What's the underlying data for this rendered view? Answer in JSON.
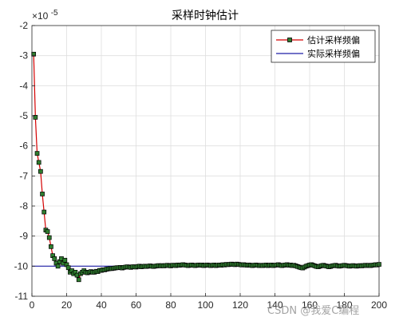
{
  "chart_data": {
    "type": "line",
    "title": "采样时钟估计",
    "xlabel": "",
    "ylabel": "",
    "xlim": [
      0,
      200
    ],
    "ylim": [
      -11,
      -2
    ],
    "x_ticks": [
      0,
      20,
      40,
      60,
      80,
      100,
      120,
      140,
      160,
      180,
      200
    ],
    "y_ticks": [
      -11,
      -10,
      -9,
      -8,
      -7,
      -6,
      -5,
      -4,
      -3,
      -2
    ],
    "y_exponent_label": "×10",
    "y_exponent_power": "-5",
    "grid": true,
    "legend_position": "top-right",
    "series": [
      {
        "name": "估计采样频偏",
        "color": "#d40000",
        "marker": "square",
        "marker_fill": "#2f7d2f",
        "x": [
          1,
          2,
          3,
          4,
          5,
          6,
          7,
          8,
          9,
          10,
          11,
          12,
          13,
          14,
          15,
          16,
          17,
          18,
          19,
          20,
          21,
          22,
          23,
          24,
          25,
          26,
          27,
          28,
          29,
          30,
          31,
          32,
          33,
          34,
          35,
          36,
          37,
          38,
          39,
          40,
          41,
          42,
          43,
          44,
          45,
          46,
          47,
          48,
          49,
          50,
          51,
          52,
          53,
          54,
          55,
          56,
          57,
          58,
          59,
          60,
          61,
          62,
          63,
          64,
          65,
          66,
          67,
          68,
          69,
          70,
          71,
          72,
          73,
          74,
          75,
          76,
          77,
          78,
          79,
          80,
          81,
          82,
          83,
          84,
          85,
          86,
          87,
          88,
          89,
          90,
          91,
          92,
          93,
          94,
          95,
          96,
          97,
          98,
          99,
          100,
          101,
          102,
          103,
          104,
          105,
          106,
          107,
          108,
          109,
          110,
          111,
          112,
          113,
          114,
          115,
          116,
          117,
          118,
          119,
          120,
          121,
          122,
          123,
          124,
          125,
          126,
          127,
          128,
          129,
          130,
          131,
          132,
          133,
          134,
          135,
          136,
          137,
          138,
          139,
          140,
          141,
          142,
          143,
          144,
          145,
          146,
          147,
          148,
          149,
          150,
          151,
          152,
          153,
          154,
          155,
          156,
          157,
          158,
          159,
          160,
          161,
          162,
          163,
          164,
          165,
          166,
          167,
          168,
          169,
          170,
          171,
          172,
          173,
          174,
          175,
          176,
          177,
          178,
          179,
          180,
          181,
          182,
          183,
          184,
          185,
          186,
          187,
          188,
          189,
          190,
          191,
          192,
          193,
          194,
          195,
          196,
          197,
          198,
          199,
          200
        ],
        "y": [
          -2.95,
          -5.05,
          -6.25,
          -6.55,
          -6.85,
          -7.6,
          -8.2,
          -8.8,
          -8.85,
          -9.05,
          -9.35,
          -9.65,
          -9.75,
          -9.9,
          -10.0,
          -9.85,
          -9.75,
          -9.9,
          -9.8,
          -9.95,
          -10.05,
          -10.2,
          -10.15,
          -10.25,
          -10.2,
          -10.3,
          -10.45,
          -10.25,
          -10.2,
          -10.15,
          -10.2,
          -10.22,
          -10.2,
          -10.18,
          -10.2,
          -10.2,
          -10.17,
          -10.18,
          -10.14,
          -10.14,
          -10.12,
          -10.12,
          -10.1,
          -10.09,
          -10.08,
          -10.08,
          -10.07,
          -10.06,
          -10.05,
          -10.05,
          -10.04,
          -10.06,
          -10.04,
          -10.03,
          -10.02,
          -10.03,
          -10.04,
          -10.02,
          -10.02,
          -10.03,
          -10.01,
          -10.0,
          -10.02,
          -10.01,
          -10.0,
          -10.01,
          -10.0,
          -9.99,
          -10.0,
          -10.01,
          -10.0,
          -9.99,
          -9.98,
          -9.99,
          -9.98,
          -9.99,
          -9.98,
          -9.97,
          -9.98,
          -9.99,
          -9.97,
          -9.97,
          -9.98,
          -9.96,
          -9.97,
          -9.96,
          -9.95,
          -9.96,
          -9.97,
          -9.98,
          -9.97,
          -9.96,
          -9.97,
          -9.98,
          -9.97,
          -9.96,
          -9.97,
          -9.96,
          -9.98,
          -9.97,
          -9.96,
          -9.97,
          -9.98,
          -9.97,
          -9.96,
          -9.98,
          -9.97,
          -9.96,
          -9.97,
          -9.95,
          -9.96,
          -9.94,
          -9.95,
          -9.94,
          -9.93,
          -9.94,
          -9.95,
          -9.93,
          -9.94,
          -9.95,
          -9.96,
          -9.95,
          -9.96,
          -9.97,
          -9.96,
          -9.97,
          -9.98,
          -9.97,
          -9.96,
          -9.97,
          -9.98,
          -9.97,
          -9.98,
          -9.97,
          -9.96,
          -9.98,
          -9.97,
          -9.96,
          -9.98,
          -9.97,
          -9.96,
          -9.95,
          -9.97,
          -9.98,
          -9.97,
          -9.96,
          -9.95,
          -9.97,
          -9.96,
          -9.98,
          -9.97,
          -9.99,
          -10.01,
          -10.03,
          -10.05,
          -10.06,
          -10.03,
          -10.0,
          -9.98,
          -9.96,
          -9.95,
          -9.97,
          -9.99,
          -10.01,
          -10.02,
          -10.0,
          -9.98,
          -9.97,
          -9.99,
          -10.0,
          -10.02,
          -10.01,
          -9.99,
          -9.98,
          -9.97,
          -9.99,
          -10.0,
          -9.99,
          -9.98,
          -9.97,
          -9.98,
          -9.99,
          -10.0,
          -9.99,
          -9.98,
          -9.99,
          -10.0,
          -9.99,
          -9.98,
          -9.99,
          -9.98,
          -9.97,
          -9.98,
          -9.97,
          -9.98,
          -9.97,
          -9.96,
          -9.95,
          -9.96,
          -9.94
        ]
      },
      {
        "name": "实际采样频偏",
        "color": "#1f1fa6",
        "marker": "none",
        "x": [
          0,
          200
        ],
        "y": [
          -10,
          -10
        ]
      }
    ]
  },
  "watermark": "CSDN @我爱C编程"
}
